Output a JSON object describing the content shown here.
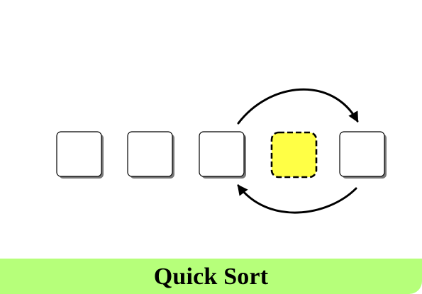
{
  "diagram": {
    "items": [
      {
        "id": "box-1",
        "highlighted": false
      },
      {
        "id": "box-2",
        "highlighted": false
      },
      {
        "id": "box-3",
        "highlighted": false
      },
      {
        "id": "box-4",
        "highlighted": true
      },
      {
        "id": "box-5",
        "highlighted": false
      }
    ],
    "swap": {
      "from_index": 2,
      "to_index": 4
    },
    "colors": {
      "box_fill": "#ffffff",
      "box_stroke": "#000000",
      "pivot_fill": "#ffff45",
      "shadow": "#777777",
      "arrow": "#000000"
    }
  },
  "footer": {
    "title": "Quick Sort",
    "background": "#b6ff7a"
  }
}
